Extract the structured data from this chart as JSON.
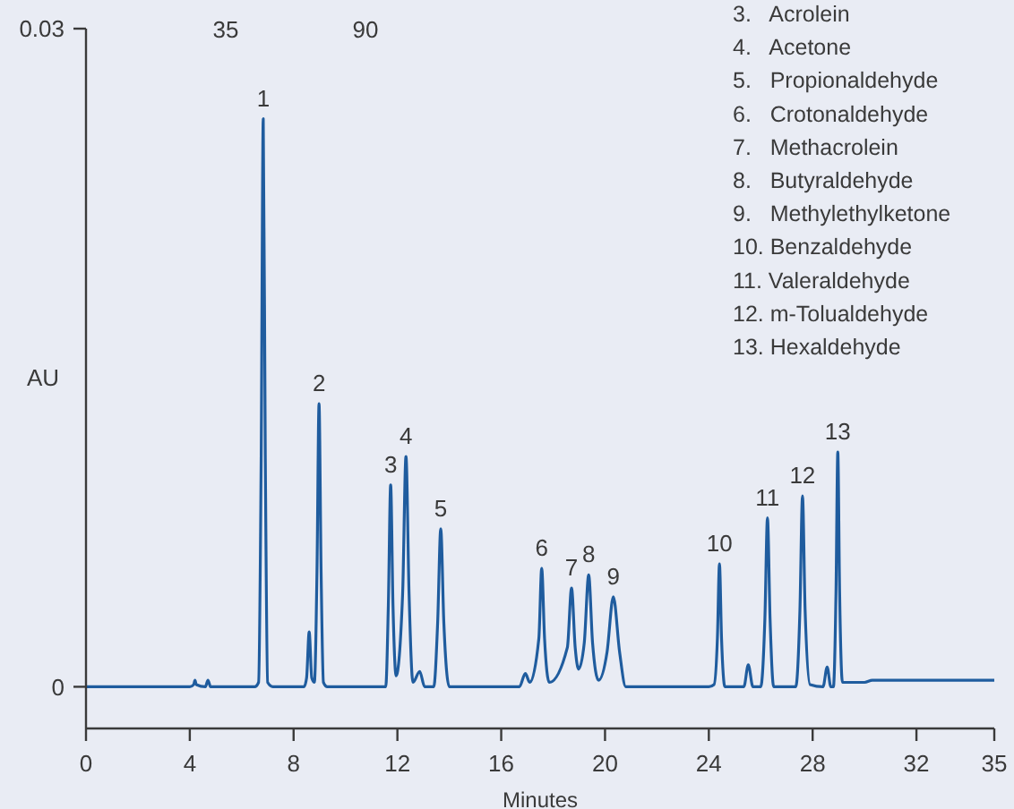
{
  "chart_data": {
    "type": "line",
    "xlabel": "Minutes",
    "ylabel": "AU",
    "xlim": [
      0,
      35
    ],
    "xticks": [
      0,
      4,
      8,
      12,
      16,
      20,
      24,
      28,
      32,
      35
    ],
    "ylim": [
      -0.0019,
      0.03
    ],
    "yticks": [
      0,
      0.03
    ],
    "grid": false,
    "line_style": "solid",
    "series": [
      {
        "color": "#1f5c9e",
        "x": [
          0,
          1,
          2,
          3,
          4,
          4.15,
          4.2,
          4.25,
          4.6,
          4.7,
          4.8,
          6.5,
          6.65,
          6.75,
          6.83,
          6.91,
          7.0,
          7.2,
          8.4,
          8.5,
          8.6,
          8.7,
          8.8,
          8.9,
          8.98,
          9.06,
          9.15,
          9.3,
          10.8,
          11.4,
          11.55,
          11.65,
          11.74,
          11.83,
          11.95,
          12.2,
          12.33,
          12.45,
          12.6,
          12.86,
          13.05,
          13.4,
          13.55,
          13.67,
          13.79,
          14.0,
          15.5,
          16.7,
          16.93,
          17.1,
          17.45,
          17.56,
          17.67,
          17.85,
          18.55,
          18.71,
          18.85,
          18.98,
          19.2,
          19.37,
          19.52,
          19.75,
          20.08,
          20.32,
          20.56,
          20.8,
          22.5,
          24.0,
          24.2,
          24.33,
          24.41,
          24.49,
          24.62,
          25.35,
          25.52,
          25.7,
          26.0,
          26.16,
          26.26,
          26.36,
          26.5,
          27.35,
          27.51,
          27.61,
          27.71,
          27.9,
          28.4,
          28.56,
          28.7,
          28.8,
          28.9,
          28.97,
          29.04,
          29.15,
          30.0,
          30.3,
          32,
          35
        ],
        "values": [
          0,
          0,
          0,
          0,
          0,
          0.0001,
          0.0003,
          0.0001,
          0,
          0.0003,
          0,
          0,
          0.0002,
          0.0104,
          0.0259,
          0.0104,
          0.0002,
          0,
          0,
          0.0004,
          0.0025,
          0.0004,
          0.0002,
          0.0052,
          0.0129,
          0.0052,
          0.0002,
          0,
          0,
          0,
          0,
          0.0037,
          0.0092,
          0.0037,
          0.0005,
          0.0042,
          0.0105,
          0.0042,
          0.0002,
          0.0007,
          0,
          0,
          0.0029,
          0.0072,
          0.0029,
          0,
          0,
          0,
          0.0006,
          0.0002,
          0.0022,
          0.0054,
          0.0022,
          0.0002,
          0.0018,
          0.0045,
          0.0018,
          0.0008,
          0.002,
          0.0051,
          0.002,
          0.0003,
          0.0016,
          0.0041,
          0.0016,
          0,
          0,
          0,
          0.0001,
          0.0022,
          0.0056,
          0.0022,
          0,
          0,
          0.001,
          0,
          0,
          0.0031,
          0.0077,
          0.0031,
          0,
          0,
          0.0035,
          0.0087,
          0.0035,
          0.0001,
          0,
          0.0009,
          0,
          0,
          0.0043,
          0.0107,
          0.0043,
          0.0002,
          0.0002,
          0.0003,
          0.0003,
          0.0003
        ]
      }
    ],
    "annotations": [
      {
        "text": "1",
        "x": 6.83,
        "y": 0.0259
      },
      {
        "text": "2",
        "x": 8.98,
        "y": 0.0129
      },
      {
        "text": "3",
        "x": 11.74,
        "y": 0.0092
      },
      {
        "text": "4",
        "x": 12.33,
        "y": 0.0105
      },
      {
        "text": "5",
        "x": 13.67,
        "y": 0.0072
      },
      {
        "text": "6",
        "x": 17.56,
        "y": 0.0054
      },
      {
        "text": "7",
        "x": 18.71,
        "y": 0.0045
      },
      {
        "text": "8",
        "x": 19.37,
        "y": 0.0051
      },
      {
        "text": "9",
        "x": 20.32,
        "y": 0.0041
      },
      {
        "text": "10",
        "x": 24.41,
        "y": 0.0056
      },
      {
        "text": "11",
        "x": 26.26,
        "y": 0.0077
      },
      {
        "text": "12",
        "x": 27.61,
        "y": 0.0087
      },
      {
        "text": "13",
        "x": 28.97,
        "y": 0.0107
      },
      "35",
      "90",
      "3.   Acrolein",
      "4.   Acetone",
      "5.   Propionaldehyde",
      "6.   Crotonaldehyde",
      "7.   Methacrolein",
      "8.   Butyraldehyde",
      "9.   Methylethylketone",
      "10. Benzaldehyde",
      "11. Valeraldehyde",
      "12. m-Tolualdehyde",
      "13. Hexaldehyde"
    ]
  }
}
